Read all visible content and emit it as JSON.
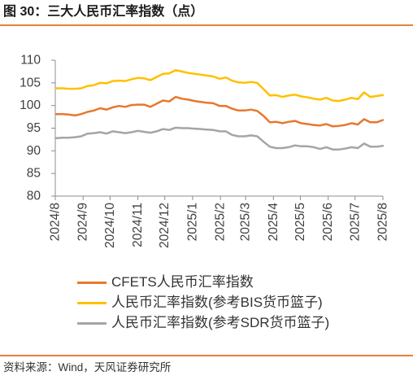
{
  "chart_data": {
    "type": "line",
    "title": "图 30：三大人民币汇率指数（点）",
    "x": [
      "2024-08-02",
      "2024-08-09",
      "2024-08-16",
      "2024-08-23",
      "2024-08-30",
      "2024-09-06",
      "2024-09-13",
      "2024-09-20",
      "2024-09-27",
      "2024-10-04",
      "2024-10-11",
      "2024-10-18",
      "2024-10-25",
      "2024-11-01",
      "2024-11-08",
      "2024-11-15",
      "2024-11-22",
      "2024-11-29",
      "2024-12-06",
      "2024-12-13",
      "2024-12-20",
      "2024-12-27",
      "2025-01-03",
      "2025-01-10",
      "2025-01-17",
      "2025-01-24",
      "2025-01-31",
      "2025-02-07",
      "2025-02-14",
      "2025-02-21",
      "2025-02-28",
      "2025-03-07",
      "2025-03-14",
      "2025-03-21",
      "2025-03-28",
      "2025-04-04",
      "2025-04-11",
      "2025-04-18",
      "2025-04-25",
      "2025-05-02",
      "2025-05-09",
      "2025-05-16",
      "2025-05-23",
      "2025-05-30",
      "2025-06-06",
      "2025-06-13",
      "2025-06-20",
      "2025-06-27",
      "2025-07-04",
      "2025-07-11",
      "2025-07-18",
      "2025-07-25",
      "2025-08-01"
    ],
    "xlim": [
      "2024-08-01",
      "2025-08-01"
    ],
    "x_ticks": [
      "2024/8",
      "2024/9",
      "2024/10",
      "2024/11",
      "2024/12",
      "2025/1",
      "2025/2",
      "2025/3",
      "2025/4",
      "2025/5",
      "2025/6",
      "2025/7",
      "2025/8"
    ],
    "ylim": [
      80,
      110
    ],
    "y_ticks": [
      80,
      85,
      90,
      95,
      100,
      105,
      110
    ],
    "grid": false,
    "legend": "bottom",
    "series": [
      {
        "name": "CFETS人民币汇率指数",
        "color": "#E8772E",
        "values": [
          98.1,
          98.1,
          98.0,
          97.8,
          98.1,
          98.6,
          98.9,
          99.4,
          99.1,
          99.6,
          99.9,
          99.7,
          100.1,
          100.2,
          100.2,
          99.7,
          100.4,
          101.1,
          100.9,
          101.9,
          101.5,
          101.3,
          101.0,
          100.8,
          100.6,
          100.5,
          99.9,
          99.9,
          99.3,
          98.9,
          98.9,
          99.1,
          98.8,
          97.7,
          96.3,
          96.4,
          96.1,
          96.4,
          96.6,
          96.1,
          95.9,
          95.7,
          95.6,
          95.9,
          95.4,
          95.5,
          95.7,
          96.1,
          95.8,
          97.0,
          96.3,
          96.3,
          96.8
        ]
      },
      {
        "name": "人民币汇率指数(参考BIS货币篮子)",
        "color": "#FFC000",
        "values": [
          103.8,
          103.8,
          103.7,
          103.7,
          103.8,
          104.3,
          104.5,
          105.0,
          104.9,
          105.4,
          105.5,
          105.4,
          105.8,
          106.1,
          106.0,
          105.6,
          106.3,
          107.0,
          107.1,
          107.8,
          107.5,
          107.2,
          107.0,
          106.8,
          106.6,
          106.4,
          105.9,
          106.2,
          105.5,
          105.1,
          105.0,
          105.2,
          105.0,
          103.6,
          102.2,
          102.3,
          101.9,
          102.2,
          102.4,
          102.0,
          101.8,
          101.5,
          101.3,
          101.7,
          101.1,
          101.0,
          101.3,
          101.7,
          101.4,
          102.9,
          101.9,
          102.1,
          102.3
        ]
      },
      {
        "name": "人民币汇率指数(参考SDR货币篮子)",
        "color": "#A5A5A5",
        "values": [
          92.8,
          92.9,
          92.9,
          93.0,
          93.2,
          93.8,
          93.9,
          94.1,
          93.8,
          94.3,
          94.1,
          93.9,
          94.1,
          94.4,
          94.2,
          94.0,
          94.3,
          94.8,
          94.6,
          95.1,
          95.0,
          95.0,
          94.9,
          94.8,
          94.7,
          94.6,
          94.3,
          94.3,
          93.5,
          93.2,
          93.2,
          93.4,
          93.2,
          92.0,
          90.9,
          90.6,
          90.6,
          90.8,
          91.2,
          91.0,
          91.0,
          90.8,
          90.4,
          90.8,
          90.3,
          90.3,
          90.5,
          90.8,
          90.6,
          91.6,
          90.9,
          90.9,
          91.1
        ]
      }
    ]
  },
  "source": "资料来源：Wind，天风证券研究所",
  "colors": {
    "rule": "#E5813A"
  }
}
